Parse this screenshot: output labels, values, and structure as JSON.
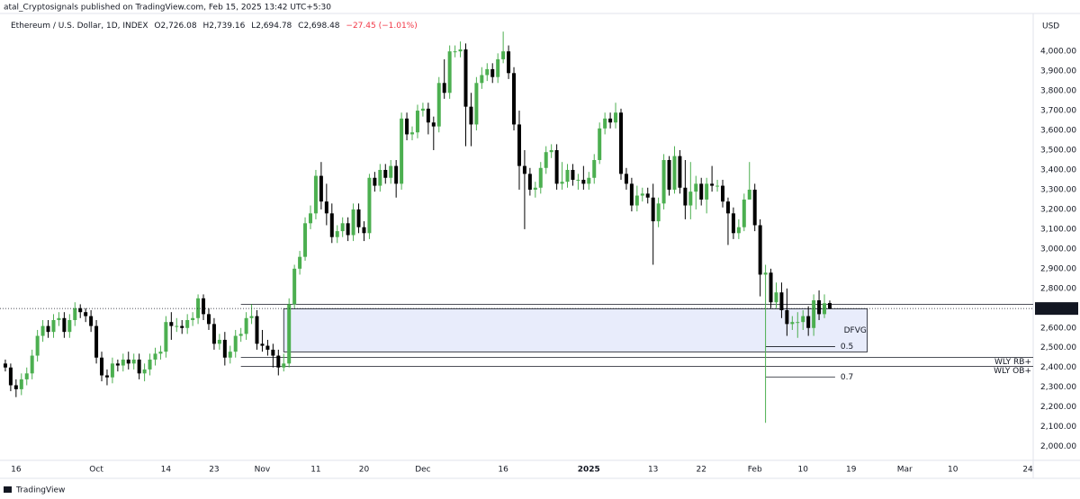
{
  "header": {
    "publisher": "atal_Cryptosignals published on TradingView.com, Feb 15, 2025 13:42 UTC+5:30",
    "footer": "TradingView"
  },
  "chart_data": {
    "type": "candlestick",
    "legend": {
      "symbol": "Ethereum / U.S. Dollar, 1D, INDEX",
      "open": "O2,726.08",
      "high": "H2,739.16",
      "low": "L2,694.78",
      "close": "C2,698.48",
      "change": "−27.45 (−1.01%)"
    },
    "y_axis_label": "USD",
    "last_price_label": "2,698.48",
    "up_color": "#4caf50",
    "down_color": "#000000",
    "x": [
      "2024-09-14",
      "2024-09-15",
      "2024-09-16",
      "2024-09-17",
      "2024-09-18",
      "2024-09-19",
      "2024-09-20",
      "2024-09-21",
      "2024-09-22",
      "2024-09-23",
      "2024-09-24",
      "2024-09-25",
      "2024-09-26",
      "2024-09-27",
      "2024-09-28",
      "2024-09-29",
      "2024-09-30",
      "2024-10-01",
      "2024-10-02",
      "2024-10-03",
      "2024-10-04",
      "2024-10-05",
      "2024-10-06",
      "2024-10-07",
      "2024-10-08",
      "2024-10-09",
      "2024-10-10",
      "2024-10-11",
      "2024-10-12",
      "2024-10-13",
      "2024-10-14",
      "2024-10-15",
      "2024-10-16",
      "2024-10-17",
      "2024-10-18",
      "2024-10-19",
      "2024-10-20",
      "2024-10-21",
      "2024-10-22",
      "2024-10-23",
      "2024-10-24",
      "2024-10-25",
      "2024-10-26",
      "2024-10-27",
      "2024-10-28",
      "2024-10-29",
      "2024-10-30",
      "2024-10-31",
      "2024-11-01",
      "2024-11-02",
      "2024-11-03",
      "2024-11-04",
      "2024-11-05",
      "2024-11-06",
      "2024-11-07",
      "2024-11-08",
      "2024-11-09",
      "2024-11-10",
      "2024-11-11",
      "2024-11-12",
      "2024-11-13",
      "2024-11-14",
      "2024-11-15",
      "2024-11-16",
      "2024-11-17",
      "2024-11-18",
      "2024-11-19",
      "2024-11-20",
      "2024-11-21",
      "2024-11-22",
      "2024-11-23",
      "2024-11-24",
      "2024-11-25",
      "2024-11-26",
      "2024-11-27",
      "2024-11-28",
      "2024-11-29",
      "2024-11-30",
      "2024-12-01",
      "2024-12-02",
      "2024-12-03",
      "2024-12-04",
      "2024-12-05",
      "2024-12-06",
      "2024-12-07",
      "2024-12-08",
      "2024-12-09",
      "2024-12-10",
      "2024-12-11",
      "2024-12-12",
      "2024-12-13",
      "2024-12-14",
      "2024-12-15",
      "2024-12-16",
      "2024-12-17",
      "2024-12-18",
      "2024-12-19",
      "2024-12-20",
      "2024-12-21",
      "2024-12-22",
      "2024-12-23",
      "2024-12-24",
      "2024-12-25",
      "2024-12-26",
      "2024-12-27",
      "2024-12-28",
      "2024-12-29",
      "2024-12-30",
      "2024-12-31",
      "2025-01-01",
      "2025-01-02",
      "2025-01-03",
      "2025-01-04",
      "2025-01-05",
      "2025-01-06",
      "2025-01-07",
      "2025-01-08",
      "2025-01-09",
      "2025-01-10",
      "2025-01-11",
      "2025-01-12",
      "2025-01-13",
      "2025-01-14",
      "2025-01-15",
      "2025-01-16",
      "2025-01-17",
      "2025-01-18",
      "2025-01-19",
      "2025-01-20",
      "2025-01-21",
      "2025-01-22",
      "2025-01-23",
      "2025-01-24",
      "2025-01-25",
      "2025-01-26",
      "2025-01-27",
      "2025-01-28",
      "2025-01-29",
      "2025-01-30",
      "2025-01-31",
      "2025-02-01",
      "2025-02-02",
      "2025-02-03",
      "2025-02-04",
      "2025-02-05",
      "2025-02-06",
      "2025-02-07",
      "2025-02-08",
      "2025-02-09",
      "2025-02-10",
      "2025-02-11",
      "2025-02-12",
      "2025-02-13",
      "2025-02-14",
      "2025-02-15"
    ],
    "open": [
      2420,
      2400,
      2310,
      2290,
      2340,
      2370,
      2460,
      2560,
      2610,
      2580,
      2640,
      2650,
      2580,
      2640,
      2700,
      2680,
      2660,
      2610,
      2450,
      2360,
      2350,
      2420,
      2410,
      2440,
      2420,
      2440,
      2370,
      2390,
      2440,
      2470,
      2480,
      2630,
      2610,
      2610,
      2600,
      2640,
      2650,
      2750,
      2670,
      2620,
      2520,
      2540,
      2450,
      2480,
      2560,
      2570,
      2650,
      2660,
      2520,
      2510,
      2490,
      2460,
      2400,
      2420,
      2720,
      2900,
      2960,
      3130,
      3180,
      3370,
      3240,
      3180,
      3060,
      3090,
      3130,
      3070,
      3200,
      3110,
      3080,
      3360,
      3320,
      3400,
      3360,
      3420,
      3330,
      3660,
      3580,
      3590,
      3700,
      3710,
      3640,
      3620,
      3840,
      3790,
      4000,
      4000,
      4010,
      3720,
      3630,
      3840,
      3880,
      3910,
      3870,
      3960,
      4000,
      3890,
      3630,
      3420,
      3380,
      3300,
      3310,
      3410,
      3490,
      3500,
      3330,
      3340,
      3400,
      3350,
      3350,
      3330,
      3360,
      3450,
      3610,
      3660,
      3640,
      3690,
      3380,
      3330,
      3220,
      3270,
      3280,
      3260,
      3140,
      3230,
      3450,
      3300,
      3470,
      3310,
      3220,
      3290,
      3330,
      3250,
      3330,
      3320,
      3320,
      3240,
      3180,
      3080,
      3110,
      3250,
      3300,
      3120,
      2870,
      2880,
      2730,
      2780,
      2690,
      2620,
      2630,
      2630,
      2660,
      2600,
      2740,
      2670,
      2726.08
    ],
    "high": [
      2440,
      2420,
      2340,
      2370,
      2400,
      2490,
      2590,
      2640,
      2640,
      2670,
      2680,
      2680,
      2670,
      2730,
      2720,
      2700,
      2690,
      2640,
      2480,
      2390,
      2450,
      2440,
      2470,
      2480,
      2470,
      2470,
      2420,
      2470,
      2500,
      2510,
      2660,
      2680,
      2650,
      2640,
      2670,
      2680,
      2770,
      2770,
      2700,
      2650,
      2570,
      2580,
      2510,
      2590,
      2600,
      2680,
      2720,
      2690,
      2590,
      2540,
      2520,
      2490,
      2470,
      2750,
      2920,
      2990,
      3160,
      3220,
      3400,
      3440,
      3330,
      3230,
      3120,
      3160,
      3160,
      3230,
      3230,
      3140,
      3380,
      3390,
      3430,
      3430,
      3450,
      3450,
      3690,
      3690,
      3620,
      3730,
      3740,
      3740,
      3670,
      3870,
      3960,
      4030,
      4030,
      4050,
      4040,
      3790,
      3870,
      3920,
      3940,
      3940,
      3990,
      4100,
      4030,
      3920,
      3700,
      3500,
      3410,
      3340,
      3440,
      3520,
      3530,
      3530,
      3440,
      3430,
      3430,
      3380,
      3420,
      3390,
      3480,
      3640,
      3690,
      3690,
      3740,
      3710,
      3410,
      3360,
      3320,
      3310,
      3310,
      3330,
      3260,
      3480,
      3470,
      3520,
      3500,
      3450,
      3440,
      3370,
      3360,
      3360,
      3420,
      3350,
      3350,
      3260,
      3210,
      3150,
      3280,
      3440,
      3330,
      3150,
      2920,
      2900,
      2830,
      2830,
      2800,
      2660,
      2680,
      2690,
      2710,
      2770,
      2790,
      2770,
      2739.16
    ],
    "low": [
      2380,
      2280,
      2250,
      2260,
      2310,
      2340,
      2430,
      2530,
      2550,
      2550,
      2610,
      2550,
      2550,
      2610,
      2650,
      2630,
      2580,
      2420,
      2330,
      2310,
      2320,
      2380,
      2380,
      2390,
      2390,
      2340,
      2330,
      2360,
      2410,
      2440,
      2450,
      2540,
      2580,
      2570,
      2570,
      2610,
      2620,
      2640,
      2590,
      2490,
      2490,
      2410,
      2420,
      2450,
      2530,
      2540,
      2620,
      2490,
      2480,
      2460,
      2400,
      2360,
      2380,
      2400,
      2700,
      2870,
      2940,
      3100,
      3150,
      3200,
      3120,
      3030,
      3030,
      3060,
      3040,
      3040,
      3080,
      3040,
      3050,
      3290,
      3290,
      3330,
      3330,
      3260,
      3300,
      3550,
      3550,
      3560,
      3670,
      3580,
      3500,
      3590,
      3760,
      3760,
      3970,
      3970,
      3520,
      3520,
      3600,
      3810,
      3850,
      3840,
      3840,
      3940,
      3860,
      3600,
      3300,
      3100,
      3270,
      3260,
      3280,
      3380,
      3460,
      3300,
      3300,
      3310,
      3320,
      3300,
      3300,
      3300,
      3330,
      3430,
      3580,
      3610,
      3610,
      3350,
      3300,
      3190,
      3190,
      3240,
      3230,
      2920,
      3110,
      3200,
      3270,
      3280,
      3280,
      3150,
      3150,
      3200,
      3220,
      3180,
      3290,
      3290,
      3210,
      3020,
      3050,
      3050,
      3090,
      3270,
      3090,
      2760,
      2120,
      2700,
      2700,
      2650,
      2560,
      2590,
      2550,
      2590,
      2560,
      2560,
      2640,
      2650,
      2694.78
    ],
    "close": [
      2400,
      2310,
      2290,
      2340,
      2370,
      2460,
      2560,
      2610,
      2580,
      2640,
      2650,
      2580,
      2640,
      2700,
      2680,
      2660,
      2610,
      2450,
      2360,
      2350,
      2420,
      2410,
      2440,
      2420,
      2440,
      2370,
      2390,
      2440,
      2470,
      2480,
      2630,
      2610,
      2610,
      2600,
      2640,
      2650,
      2750,
      2670,
      2620,
      2520,
      2540,
      2450,
      2480,
      2560,
      2570,
      2650,
      2660,
      2520,
      2510,
      2490,
      2460,
      2400,
      2420,
      2720,
      2900,
      2960,
      3130,
      3180,
      3370,
      3240,
      3180,
      3060,
      3090,
      3130,
      3070,
      3200,
      3110,
      3080,
      3360,
      3320,
      3400,
      3360,
      3420,
      3330,
      3660,
      3580,
      3590,
      3700,
      3710,
      3640,
      3620,
      3840,
      3790,
      4000,
      4000,
      4010,
      3720,
      3630,
      3840,
      3880,
      3910,
      3870,
      3960,
      4000,
      3890,
      3630,
      3420,
      3380,
      3300,
      3310,
      3410,
      3490,
      3500,
      3330,
      3340,
      3400,
      3350,
      3350,
      3330,
      3360,
      3450,
      3610,
      3660,
      3640,
      3690,
      3380,
      3330,
      3220,
      3270,
      3280,
      3260,
      3140,
      3230,
      3450,
      3300,
      3470,
      3310,
      3220,
      3290,
      3330,
      3250,
      3330,
      3320,
      3320,
      3240,
      3180,
      3080,
      3110,
      3250,
      3300,
      3120,
      2870,
      2880,
      2730,
      2780,
      2690,
      2620,
      2630,
      2630,
      2660,
      2600,
      2740,
      2670,
      2725,
      2698.48
    ],
    "xlim": [
      "2024-09-13",
      "2025-03-25"
    ],
    "xticks": [
      {
        "value": "2024-09-16",
        "label": "16"
      },
      {
        "value": "2024-10-01",
        "label": "Oct"
      },
      {
        "value": "2024-10-14",
        "label": "14"
      },
      {
        "value": "2024-10-23",
        "label": "23"
      },
      {
        "value": "2024-11-01",
        "label": "Nov"
      },
      {
        "value": "2024-11-11",
        "label": "11"
      },
      {
        "value": "2024-11-20",
        "label": "20"
      },
      {
        "value": "2024-12-01",
        "label": "Dec"
      },
      {
        "value": "2024-12-16",
        "label": "16"
      },
      {
        "value": "2025-01-01",
        "label": "2025"
      },
      {
        "value": "2025-01-13",
        "label": "13"
      },
      {
        "value": "2025-01-22",
        "label": "22"
      },
      {
        "value": "2025-02-01",
        "label": "Feb"
      },
      {
        "value": "2025-02-10",
        "label": "10"
      },
      {
        "value": "2025-02-19",
        "label": "19"
      },
      {
        "value": "2025-03-01",
        "label": "Mar"
      },
      {
        "value": "2025-03-10",
        "label": "10"
      },
      {
        "value": "2025-03-24",
        "label": "24"
      }
    ],
    "ylim": [
      1930,
      4260
    ],
    "yticks": [
      {
        "value": 2000,
        "label": "2,000.00"
      },
      {
        "value": 2100,
        "label": "2,100.00"
      },
      {
        "value": 2200,
        "label": "2,200.00"
      },
      {
        "value": 2300,
        "label": "2,300.00"
      },
      {
        "value": 2400,
        "label": "2,400.00"
      },
      {
        "value": 2500,
        "label": "2,500.00"
      },
      {
        "value": 2600,
        "label": "2,600.00"
      },
      {
        "value": 2700,
        "label": "2,700.00"
      },
      {
        "value": 2800,
        "label": "2,800.00"
      },
      {
        "value": 2900,
        "label": "2,900.00"
      },
      {
        "value": 3000,
        "label": "3,000.00"
      },
      {
        "value": 3100,
        "label": "3,100.00"
      },
      {
        "value": 3200,
        "label": "3,200.00"
      },
      {
        "value": 3300,
        "label": "3,300.00"
      },
      {
        "value": 3400,
        "label": "3,400.00"
      },
      {
        "value": 3500,
        "label": "3,500.00"
      },
      {
        "value": 3600,
        "label": "3,600.00"
      },
      {
        "value": 3700,
        "label": "3,700.00"
      },
      {
        "value": 3800,
        "label": "3,800.00"
      },
      {
        "value": 3900,
        "label": "3,900.00"
      },
      {
        "value": 4000,
        "label": "4,000.00"
      }
    ],
    "grid": false,
    "annotations": {
      "box": {
        "label": "DFVG",
        "start": "2024-11-05",
        "end": "2025-02-22",
        "top": 2697,
        "bottom": 2479,
        "color": "#e91e63"
      },
      "range_top": {
        "value": 2720,
        "start": "2024-10-28"
      },
      "levels": [
        {
          "label": "WLY RB+",
          "value": 2451,
          "start": "2024-10-28",
          "color": "#f23645"
        },
        {
          "label": "WLY OB+",
          "value": 2406,
          "start": "2024-10-28",
          "color": "#f23645"
        }
      ],
      "fib": [
        {
          "label": "0.5",
          "value": 2506,
          "start": "2025-02-03",
          "end": "2025-02-16"
        },
        {
          "label": "0.7",
          "value": 2352,
          "start": "2025-02-03",
          "end": "2025-02-16"
        }
      ]
    }
  }
}
